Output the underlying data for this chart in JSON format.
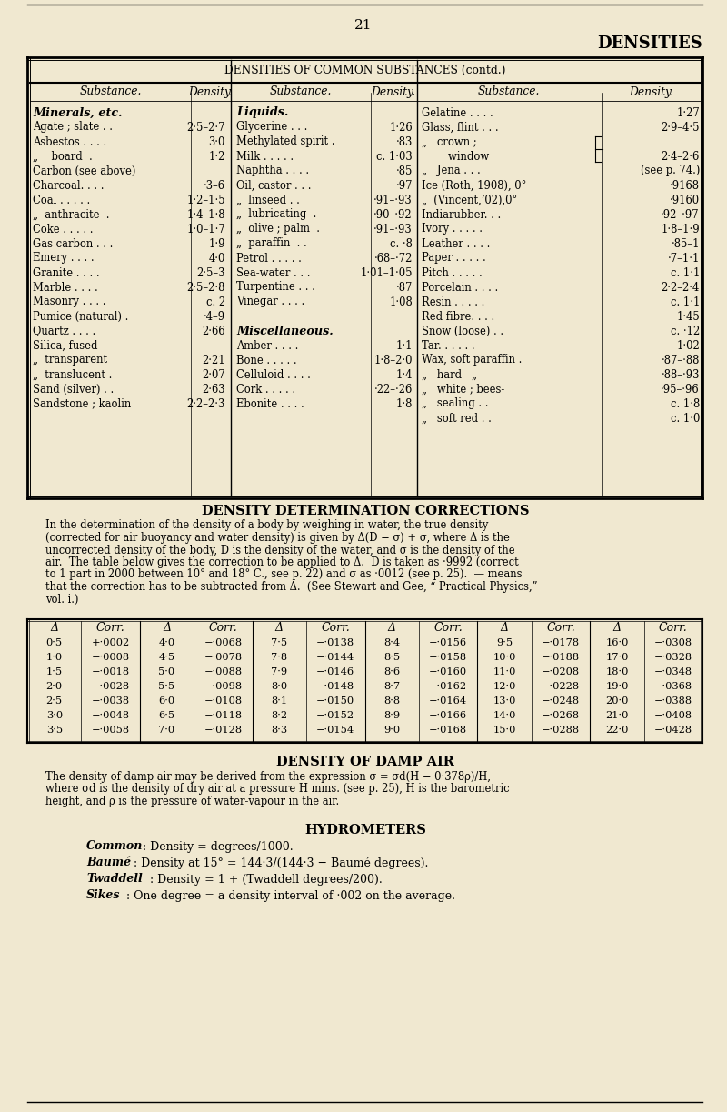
{
  "bg_color": "#f0e8d0",
  "page_num": "21",
  "header_title": "DENSITIES",
  "table1_title_text": "DENSITIES OF COMMON SUBSTANCES (contd.)",
  "section2_title": "DENSITY DETERMINATION CORRECTIONS",
  "section3_title": "DENSITY OF DAMP AIR",
  "section4_title": "HYDROMETERS",
  "minerals": [
    [
      "Agate ; slate . .",
      "2·5–2·7"
    ],
    [
      "Asbestos . . . .",
      "3·0"
    ],
    [
      "„    board  .",
      "1·2"
    ],
    [
      "Carbon (see above)",
      ""
    ],
    [
      "Charcoal. . . .",
      "·3–6"
    ],
    [
      "Coal . . . . .",
      "1·2–1·5"
    ],
    [
      "„  anthracite  .",
      "1·4–1·8"
    ],
    [
      "Coke . . . . .",
      "1·0–1·7"
    ],
    [
      "Gas carbon . . .",
      "1·9"
    ],
    [
      "Emery . . . .",
      "4·0"
    ],
    [
      "Granite . . . .",
      "2·5–3"
    ],
    [
      "Marble . . . .",
      "2·5–2·8"
    ],
    [
      "Masonry . . . .",
      "c. 2"
    ],
    [
      "Pumice (natural) .",
      "·4–9"
    ],
    [
      "Quartz . . . .",
      "2·66"
    ],
    [
      "Silica, fused",
      ""
    ],
    [
      "„  transparent",
      "2·21"
    ],
    [
      "„  translucent .",
      "2·07"
    ],
    [
      "Sand (silver) . .",
      "2·63"
    ],
    [
      "Sandstone ; kaolin",
      "2·2–2·3"
    ]
  ],
  "liquids": [
    [
      "Glycerine . . .",
      "1·26"
    ],
    [
      "Methylated spirit .",
      "·83"
    ],
    [
      "Milk . . . . .",
      "c. 1·03"
    ],
    [
      "Naphtha . . . .",
      "·85"
    ],
    [
      "Oil, castor . . .",
      "·97"
    ],
    [
      "„  linseed . .",
      "·91–·93"
    ],
    [
      "„  lubricating  .",
      "·90–·92"
    ],
    [
      "„  olive ; palm  .",
      "·91–·93"
    ],
    [
      "„  paraffin  . .",
      "c. ·8"
    ],
    [
      "Petrol . . . . .",
      "·68–·72"
    ],
    [
      "Sea-water . . .",
      "1·01–1·05"
    ],
    [
      "Turpentine . . .",
      "·87"
    ],
    [
      "Vinegar . . . .",
      "1·08"
    ],
    [
      "",
      ""
    ],
    [
      "Miscellaneous.",
      "BOLD"
    ],
    [
      "Amber . . . .",
      "1·1"
    ],
    [
      "Bone . . . . .",
      "1·8–2·0"
    ],
    [
      "Celluloid . . . .",
      "1·4"
    ],
    [
      "Cork . . . . .",
      "·22–·26"
    ],
    [
      "Ebonite . . . .",
      "1·8"
    ]
  ],
  "col3": [
    [
      "Gelatine . . . .",
      "1·27"
    ],
    [
      "Glass, flint . . .",
      "2·9–4·5"
    ],
    [
      "„   crown ;  }",
      ""
    ],
    [
      "        window  }",
      "2·4–2·6"
    ],
    [
      "„   Jena . . .",
      "(see p. 74.)"
    ],
    [
      "Ice (Roth, 1908), 0°",
      "·9168"
    ],
    [
      "„  (Vincent,‘02),0°",
      "·9160"
    ],
    [
      "Indiarubber. . .",
      "·92–·97"
    ],
    [
      "Ivory . . . . .",
      "1·8–1·9"
    ],
    [
      "Leather . . . .",
      "·85–1"
    ],
    [
      "Paper . . . . .",
      "·7–1·1"
    ],
    [
      "Pitch . . . . .",
      "c. 1·1"
    ],
    [
      "Porcelain . . . .",
      "2·2–2·4"
    ],
    [
      "Resin . . . . .",
      "c. 1·1"
    ],
    [
      "Red fibre. . . .",
      "1·45"
    ],
    [
      "Snow (loose) . .",
      "c. ·12"
    ],
    [
      "Tar. . . . . .",
      "1·02"
    ],
    [
      "Wax, soft paraffin .",
      "·87–·88"
    ],
    [
      "„   hard   „",
      "·88–·93"
    ],
    [
      "„   white ; bees-",
      "·95–·96"
    ],
    [
      "„   sealing . .",
      "c. 1·8"
    ],
    [
      "„   soft red . .",
      "c. 1·0"
    ]
  ],
  "corr_rows": [
    [
      "0·5",
      "+·0002",
      "4·0",
      "−·0068",
      "7·5",
      "−·0138",
      "8·4",
      "−·0156",
      "9·5",
      "−·0178",
      "16·0",
      "−·0308"
    ],
    [
      "1·0",
      "−·0008",
      "4·5",
      "−·0078",
      "7·8",
      "−·0144",
      "8·5",
      "−·0158",
      "10·0",
      "−·0188",
      "17·0",
      "−·0328"
    ],
    [
      "1·5",
      "−·0018",
      "5·0",
      "−·0088",
      "7·9",
      "−·0146",
      "8·6",
      "−·0160",
      "11·0",
      "−·0208",
      "18·0",
      "−·0348"
    ],
    [
      "2·0",
      "−·0028",
      "5·5",
      "−·0098",
      "8·0",
      "−·0148",
      "8·7",
      "−·0162",
      "12·0",
      "−·0228",
      "19·0",
      "−·0368"
    ],
    [
      "2·5",
      "−·0038",
      "6·0",
      "−·0108",
      "8·1",
      "−·0150",
      "8·8",
      "−·0164",
      "13·0",
      "−·0248",
      "20·0",
      "−·0388"
    ],
    [
      "3·0",
      "−·0048",
      "6·5",
      "−·0118",
      "8·2",
      "−·0152",
      "8·9",
      "−·0166",
      "14·0",
      "−·0268",
      "21·0",
      "−·0408"
    ],
    [
      "3·5",
      "−·0058",
      "7·0",
      "−·0128",
      "8·3",
      "−·0154",
      "9·0",
      "−·0168",
      "15·0",
      "−·0288",
      "22·0",
      "−·0428"
    ]
  ],
  "para2_lines": [
    "In the determination of the density of a body by weighing in water, the true density",
    "(corrected for air buoyancy and water density) is given by Δ(D − σ) + σ, where Δ is the",
    "uncorrected density of the body, D is the density of the water, and σ is the density of the",
    "air.  The table below gives the correction to be applied to Δ.  D is taken as ·9992 (correct",
    "to 1 part in 2000 between 10° and 18° C., see p. 22) and σ as ·0012 (see p. 25).  — means",
    "that the correction has to be subtracted from Δ.  (See Stewart and Gee, “ Practical Physics,”",
    "vol. i.)"
  ],
  "para3_lines": [
    "The density of damp air may be derived from the expression σ = σd(H − 0·378ρ)/H,",
    "where σd is the density of dry air at a pressure H mms. (see p. 25), H is the barometric",
    "height, and ρ is the pressure of water-vapour in the air."
  ],
  "hydro_rows": [
    [
      "Common",
      ": Density = degrees/1000."
    ],
    [
      "Baumé",
      ": Density at 15° = 144·3/(144·3 − Baumé degrees)."
    ],
    [
      "Twaddell",
      ": Density = 1 + (Twaddell degrees/200)."
    ],
    [
      "Sikes",
      ": One degree = a density interval of ·002 on the average."
    ]
  ]
}
